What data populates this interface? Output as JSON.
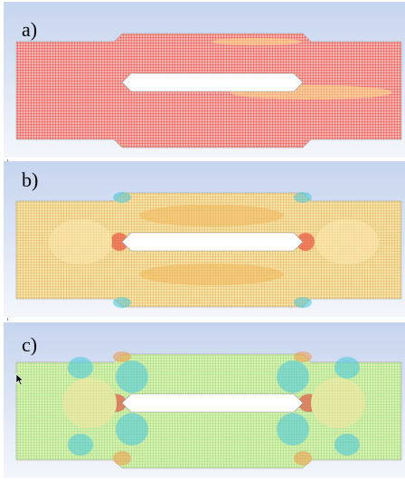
{
  "panels": [
    {
      "label": "a)",
      "field": "uniform-high"
    },
    {
      "label": "b)",
      "field": "moderate"
    },
    {
      "label": "c)",
      "field": "low"
    }
  ],
  "colors": {
    "background_top": "#c6d4ee",
    "background_bottom": "#f4f6fb",
    "high": "#e8332e",
    "medium": "#f3c27a",
    "low": "#a9e58c",
    "min": "#46c8e0"
  }
}
